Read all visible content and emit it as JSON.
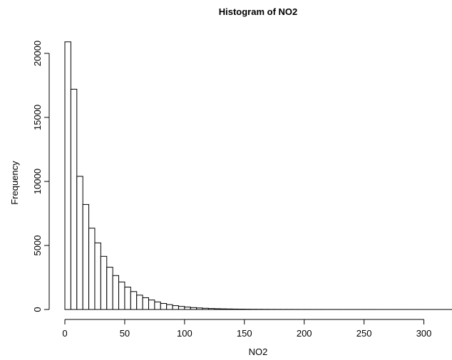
{
  "chart_data": {
    "type": "bar",
    "title": "Histogram of NO2",
    "xlabel": "NO2",
    "ylabel": "Frequency",
    "bin_width": 5,
    "bin_start": 0,
    "xlim": [
      0,
      325
    ],
    "ylim": [
      0,
      21000
    ],
    "x_ticks": [
      0,
      50,
      100,
      150,
      200,
      250,
      300
    ],
    "x_tick_labels": [
      "0",
      "50",
      "100",
      "150",
      "200",
      "250",
      "300"
    ],
    "y_ticks": [
      0,
      5000,
      10000,
      15000,
      20000
    ],
    "y_tick_labels": [
      "0",
      "5000",
      "10000",
      "15000",
      "20000"
    ],
    "bar_fill": "#ffffff",
    "bar_stroke": "#000000",
    "grid": false,
    "values": [
      20900,
      17200,
      10400,
      8200,
      6350,
      5200,
      4150,
      3300,
      2650,
      2150,
      1750,
      1400,
      1120,
      920,
      740,
      590,
      470,
      380,
      300,
      240,
      190,
      150,
      120,
      95,
      75,
      60,
      48,
      40,
      33,
      27,
      22,
      18,
      15,
      12,
      10,
      9,
      8,
      7,
      6,
      5,
      5,
      4,
      4,
      3,
      3,
      3,
      2,
      2,
      2,
      2,
      2,
      2,
      1,
      1,
      1,
      1,
      1,
      1,
      1,
      1,
      1,
      1,
      1,
      1,
      1
    ]
  }
}
